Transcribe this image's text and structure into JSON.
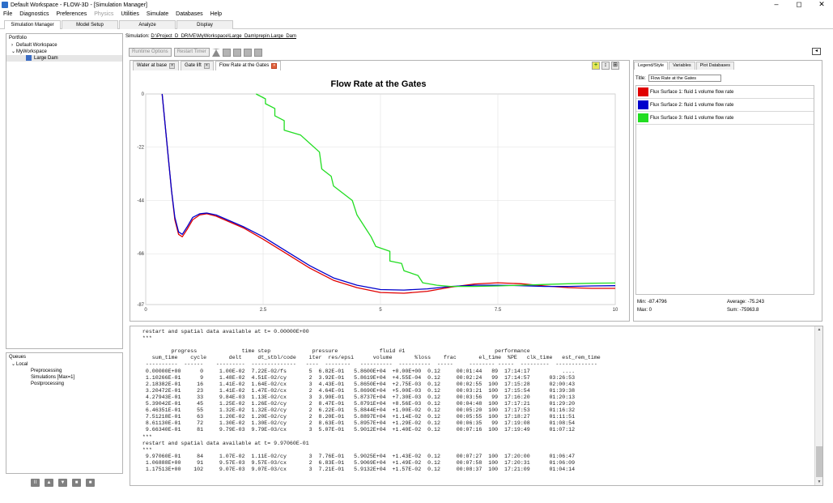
{
  "window": {
    "title": "Default Workspace - FLOW-3D - [Simulation Manager]",
    "controls": [
      "–",
      "◻",
      "✕"
    ]
  },
  "menu": [
    "File",
    "Diagnostics",
    "Preferences",
    "Physics",
    "Utilities",
    "Simulate",
    "Databases",
    "Help"
  ],
  "main_tabs": [
    "Simulation Manager",
    "Model Setup",
    "Analyze",
    "Display"
  ],
  "left": {
    "header": "Portfolio",
    "tree": [
      {
        "label": "Default Workspace",
        "indent": 1,
        "toggle": "›"
      },
      {
        "label": "MyWorkspace",
        "indent": 1,
        "toggle": "⌄"
      },
      {
        "label": "Large Dam",
        "indent": 3,
        "toggle": ""
      }
    ],
    "queues_header": "Queues",
    "queues": [
      {
        "label": "Local",
        "indent": 1,
        "toggle": "⌄"
      },
      {
        "label": "Preprocessing",
        "indent": 4,
        "toggle": ""
      },
      {
        "label": "Simulations [Max=1]",
        "indent": 4,
        "toggle": ""
      },
      {
        "label": "Postprocessing",
        "indent": 4,
        "toggle": ""
      }
    ],
    "queue_buttons": [
      "II",
      "▲",
      "▼",
      "■",
      "■"
    ]
  },
  "sim_path": {
    "label": "Simulation:",
    "path": "D:\\Project_D_DRIVE\\MyWorkspace\\Large_Dam\\prepin.Large_Dam"
  },
  "toolbar": {
    "runtime_options": "Runtime Options",
    "restart_timer": "Restart Timer"
  },
  "plot_tabs": [
    "Water at base",
    "Gate lift",
    "Flow Rate at the Gates"
  ],
  "plot_icons": [
    "+",
    "↕",
    "⊞"
  ],
  "chart_data": {
    "type": "line",
    "title": "Flow Rate at the Gates",
    "xlabel": "",
    "ylabel": "",
    "xlim": [
      0,
      10
    ],
    "ylim": [
      -87,
      0
    ],
    "x_ticks": [
      "0",
      "2.5",
      "5",
      "7.5",
      "10"
    ],
    "y_ticks": [
      "0",
      "-22",
      "-44",
      "-66",
      "-87"
    ],
    "grid": true,
    "series": [
      {
        "name": "Flux Surface 1: fluid 1 volume flow rate",
        "color": "#e00000",
        "points": [
          [
            0.35,
            0
          ],
          [
            0.45,
            -20
          ],
          [
            0.55,
            -40
          ],
          [
            0.62,
            -52
          ],
          [
            0.7,
            -58
          ],
          [
            0.78,
            -59
          ],
          [
            0.88,
            -56
          ],
          [
            1.0,
            -52
          ],
          [
            1.15,
            -50
          ],
          [
            1.3,
            -49.5
          ],
          [
            1.5,
            -50.5
          ],
          [
            1.8,
            -53
          ],
          [
            2.1,
            -55.5
          ],
          [
            2.5,
            -60
          ],
          [
            3.0,
            -66
          ],
          [
            3.5,
            -72
          ],
          [
            4.0,
            -77
          ],
          [
            4.5,
            -80
          ],
          [
            5.0,
            -82
          ],
          [
            5.5,
            -82.3
          ],
          [
            6.0,
            -81.5
          ],
          [
            6.5,
            -79.8
          ],
          [
            7.0,
            -78.5
          ],
          [
            7.5,
            -78
          ],
          [
            8.0,
            -78.4
          ],
          [
            8.5,
            -79.3
          ],
          [
            9.0,
            -80
          ],
          [
            9.5,
            -80.3
          ],
          [
            10,
            -80.3
          ]
        ]
      },
      {
        "name": "Flux Surface 2: fluid 1 volume flow rate",
        "color": "#0000cc",
        "points": [
          [
            0.35,
            0
          ],
          [
            0.45,
            -20
          ],
          [
            0.55,
            -40
          ],
          [
            0.62,
            -51
          ],
          [
            0.7,
            -57
          ],
          [
            0.78,
            -58
          ],
          [
            0.88,
            -55
          ],
          [
            1.0,
            -51
          ],
          [
            1.15,
            -49.5
          ],
          [
            1.3,
            -49.2
          ],
          [
            1.5,
            -50
          ],
          [
            1.8,
            -52.5
          ],
          [
            2.1,
            -55
          ],
          [
            2.5,
            -59
          ],
          [
            3.0,
            -65
          ],
          [
            3.5,
            -71
          ],
          [
            4.0,
            -76
          ],
          [
            4.5,
            -79
          ],
          [
            5.0,
            -80.8
          ],
          [
            5.5,
            -81
          ],
          [
            6.0,
            -80.5
          ],
          [
            6.5,
            -79.5
          ],
          [
            7.0,
            -79
          ],
          [
            7.5,
            -79
          ],
          [
            8.0,
            -79.2
          ],
          [
            8.5,
            -79.5
          ],
          [
            9.0,
            -79.5
          ],
          [
            9.5,
            -79.3
          ],
          [
            10,
            -79.2
          ]
        ]
      },
      {
        "name": "Flux Surface 3: fluid 1 volume flow rate",
        "color": "#22dd22",
        "points": [
          [
            2.35,
            0
          ],
          [
            2.55,
            -2
          ],
          [
            2.55,
            -4
          ],
          [
            2.75,
            -6
          ],
          [
            2.75,
            -9
          ],
          [
            2.95,
            -11
          ],
          [
            2.95,
            -15
          ],
          [
            3.3,
            -17
          ],
          [
            3.7,
            -24
          ],
          [
            3.75,
            -31
          ],
          [
            3.95,
            -34
          ],
          [
            4.0,
            -38
          ],
          [
            4.4,
            -44
          ],
          [
            4.5,
            -50
          ],
          [
            4.7,
            -56
          ],
          [
            4.8,
            -59
          ],
          [
            4.9,
            -63
          ],
          [
            5.2,
            -65
          ],
          [
            5.2,
            -69
          ],
          [
            5.45,
            -70
          ],
          [
            5.5,
            -73
          ],
          [
            5.8,
            -75
          ],
          [
            5.9,
            -78
          ],
          [
            6.2,
            -79
          ],
          [
            6.5,
            -79.5
          ],
          [
            7.0,
            -79.5
          ],
          [
            7.5,
            -79.3
          ],
          [
            8.0,
            -79
          ],
          [
            8.5,
            -78.7
          ],
          [
            9.0,
            -78.4
          ],
          [
            9.5,
            -78.2
          ],
          [
            10,
            -78.1
          ]
        ]
      }
    ]
  },
  "right_panel": {
    "tabs": [
      "Legend/Style",
      "Variables",
      "Plot Databases"
    ],
    "title_label": "Title:",
    "title_value": "Flow Rate at the Gates",
    "legend": [
      {
        "label": "Flux Surface 1: fluid 1 volume flow rate",
        "color": "#e00000"
      },
      {
        "label": "Flux Surface 2: fluid 1 volume flow rate",
        "color": "#0000cc"
      },
      {
        "label": "Flux Surface 3: fluid 1 volume flow rate",
        "color": "#22dd22"
      }
    ],
    "stats": {
      "min": "Min: -87.4796",
      "max": "Max: 0",
      "average": "Average: -75.243",
      "sum": "Sum: -75963.8"
    }
  },
  "console": {
    "lines": [
      "  restart and spatial data available at t= 0.00000E+00",
      "  ***",
      "",
      "           progress              time step             pressure             fluid #1                            performance",
      "     sum_time    cycle       delt     dt_stbl/code    iter  res/epsi      volume       %loss    frac       el_time  %PE   clk_time   est_rem_time",
      "   ----------  ------    ---------  --------------   ----  --------   ----------  ----------  -----     -------- -----  ---------  -------------",
      "   0.00000E+00      0     1.00E-02  7.22E-02/fs       5  6.82E-01   5.8600E+04  +0.00E+00  0.12     00:01:44   89  17:14:17          ....",
      "   1.10266E-01      9     1.48E-02  4.51E-02/cy       2  3.92E-01   5.8619E+04  +4.55E-04  0.12     00:02:24   99  17:14:57      03:26:53",
      "   2.18382E-01     16     1.41E-02  1.64E-02/cx       3  4.43E-01   5.8650E+04  +2.75E-03  0.12     00:02:55  100  17:15:28      02:00:43",
      "   3.20472E-01     23     1.41E-02  1.47E-02/cx       2  4.64E-01   5.8690E+04  +5.00E-03  0.12     00:03:21  100  17:15:54      01:39:38",
      "   4.27943E-01     33     9.84E-03  1.13E-02/cx       3  3.90E-01   5.8737E+04  +7.30E-03  0.12     00:03:56   99  17:16:20      01:20:13",
      "   5.39042E-01     45     1.25E-02  1.26E-02/cy       2  8.47E-01   5.8791E+04  +8.56E-03  0.12     00:04:48  100  17:17:21      01:29:20",
      "   6.46351E-01     55     1.32E-02  1.32E-02/cy       2  6.22E-01   5.8844E+04  +1.00E-02  0.12     00:05:20  100  17:17:53      01:16:32",
      "   7.51218E-01     63     1.20E-02  1.20E-02/cy       2  8.20E-01   5.8897E+04  +1.14E-02  0.12     00:05:55  100  17:18:27      01:11:51",
      "   8.61130E-01     72     1.30E-02  1.30E-02/cy       2  8.63E-01   5.8957E+04  +1.29E-02  0.12     00:06:35   99  17:19:08      01:08:54",
      "   9.66340E-01     81     9.79E-03  9.79E-03/cx       3  5.07E-01   5.9012E+04  +1.40E-02  0.12     00:07:16  100  17:19:49      01:07:12",
      "  ***",
      "  restart and spatial data available at t= 9.97060E-01",
      "  ***",
      "   9.97060E-01     84     1.07E-02  1.11E-02/cy       3  7.76E-01   5.9025E+04  +1.43E-02  0.12     00:07:27  100  17:20:00      01:06:47",
      "   1.06888E+00     91     9.57E-03  9.57E-03/cx       2  6.83E-01   5.9069E+04  +1.49E-02  0.12     00:07:58  100  17:20:31      01:06:09",
      "   1.17513E+00    102     9.07E-03  9.07E-03/cx       3  7.21E-01   5.9132E+04  +1.57E-02  0.12     00:08:37  100  17:21:09      01:04:14"
    ]
  }
}
